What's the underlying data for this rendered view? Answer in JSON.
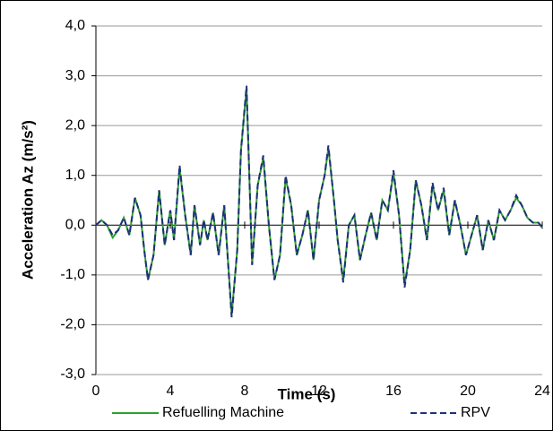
{
  "chart_data": {
    "type": "line",
    "xlabel": "Time (s)",
    "ylabel": "Acceleration Az (m/s²)",
    "x": [
      0,
      0.3,
      0.6,
      0.9,
      1.2,
      1.5,
      1.8,
      2.1,
      2.4,
      2.6,
      2.8,
      3.1,
      3.4,
      3.7,
      4.0,
      4.2,
      4.5,
      4.8,
      5.1,
      5.3,
      5.6,
      5.8,
      6.0,
      6.3,
      6.6,
      6.9,
      7.3,
      7.6,
      7.8,
      8.1,
      8.4,
      8.7,
      9.0,
      9.3,
      9.6,
      9.9,
      10.2,
      10.5,
      10.8,
      11.1,
      11.4,
      11.7,
      12.0,
      12.3,
      12.5,
      12.8,
      13.0,
      13.3,
      13.6,
      13.9,
      14.2,
      14.5,
      14.8,
      15.1,
      15.4,
      15.7,
      16.0,
      16.3,
      16.6,
      16.9,
      17.2,
      17.5,
      17.8,
      18.1,
      18.4,
      18.7,
      19.0,
      19.3,
      19.6,
      19.9,
      20.2,
      20.5,
      20.8,
      21.1,
      21.4,
      21.7,
      22.0,
      22.3,
      22.6,
      22.9,
      23.2,
      23.5,
      23.8,
      24.0
    ],
    "series": [
      {
        "name": "Refuelling Machine",
        "color": "#2ca02c",
        "dashed": false,
        "values": [
          0,
          0.1,
          0.0,
          -0.25,
          -0.1,
          0.15,
          -0.2,
          0.55,
          0.2,
          -0.5,
          -1.1,
          -0.6,
          0.7,
          -0.4,
          0.3,
          -0.3,
          1.15,
          0.2,
          -0.6,
          0.4,
          -0.4,
          0.1,
          -0.3,
          0.25,
          -0.6,
          0.4,
          -1.8,
          -0.5,
          1.5,
          2.75,
          -0.8,
          0.8,
          1.35,
          0.0,
          -1.1,
          -0.6,
          0.95,
          0.4,
          -0.6,
          -0.2,
          0.3,
          -0.7,
          0.5,
          1.0,
          1.55,
          0.5,
          -0.3,
          -1.1,
          0.0,
          0.2,
          -0.7,
          -0.2,
          0.25,
          -0.3,
          0.5,
          0.3,
          1.05,
          0.2,
          -1.2,
          -0.5,
          0.9,
          0.4,
          -0.3,
          0.8,
          0.3,
          0.7,
          -0.2,
          0.5,
          0.0,
          -0.6,
          -0.2,
          0.2,
          -0.5,
          0.1,
          -0.3,
          0.3,
          0.1,
          0.3,
          0.55,
          0.4,
          0.15,
          0.05,
          0.05,
          -0.05
        ]
      },
      {
        "name": "RPV",
        "color": "#1f2f7a",
        "dashed": true,
        "values": [
          0,
          0.1,
          0.0,
          -0.2,
          -0.1,
          0.15,
          -0.2,
          0.55,
          0.2,
          -0.5,
          -1.1,
          -0.6,
          0.7,
          -0.4,
          0.3,
          -0.3,
          1.2,
          0.2,
          -0.6,
          0.4,
          -0.4,
          0.1,
          -0.3,
          0.25,
          -0.6,
          0.4,
          -1.85,
          -0.5,
          1.5,
          2.8,
          -0.8,
          0.8,
          1.4,
          0.0,
          -1.1,
          -0.6,
          1.0,
          0.4,
          -0.6,
          -0.2,
          0.3,
          -0.7,
          0.5,
          1.0,
          1.6,
          0.5,
          -0.3,
          -1.15,
          0.0,
          0.2,
          -0.7,
          -0.2,
          0.25,
          -0.3,
          0.5,
          0.3,
          1.1,
          0.2,
          -1.25,
          -0.5,
          0.9,
          0.4,
          -0.3,
          0.85,
          0.3,
          0.75,
          -0.2,
          0.5,
          0.0,
          -0.6,
          -0.2,
          0.2,
          -0.5,
          0.1,
          -0.3,
          0.3,
          0.1,
          0.3,
          0.6,
          0.4,
          0.15,
          0.05,
          0.05,
          -0.05
        ]
      }
    ],
    "xlim": [
      0,
      24
    ],
    "xticks": [
      0,
      4,
      8,
      12,
      16,
      20,
      24
    ],
    "ylim": [
      -3,
      4
    ],
    "yticks": [
      {
        "value": -3,
        "label": "-3,0"
      },
      {
        "value": -2,
        "label": "-2,0"
      },
      {
        "value": -1,
        "label": "-1,0"
      },
      {
        "value": 0,
        "label": "0,0"
      },
      {
        "value": 1,
        "label": "1,0"
      },
      {
        "value": 2,
        "label": "2,0"
      },
      {
        "value": 3,
        "label": "3,0"
      },
      {
        "value": 4,
        "label": "4,0"
      }
    ],
    "grid": true,
    "legend": "bottom"
  }
}
